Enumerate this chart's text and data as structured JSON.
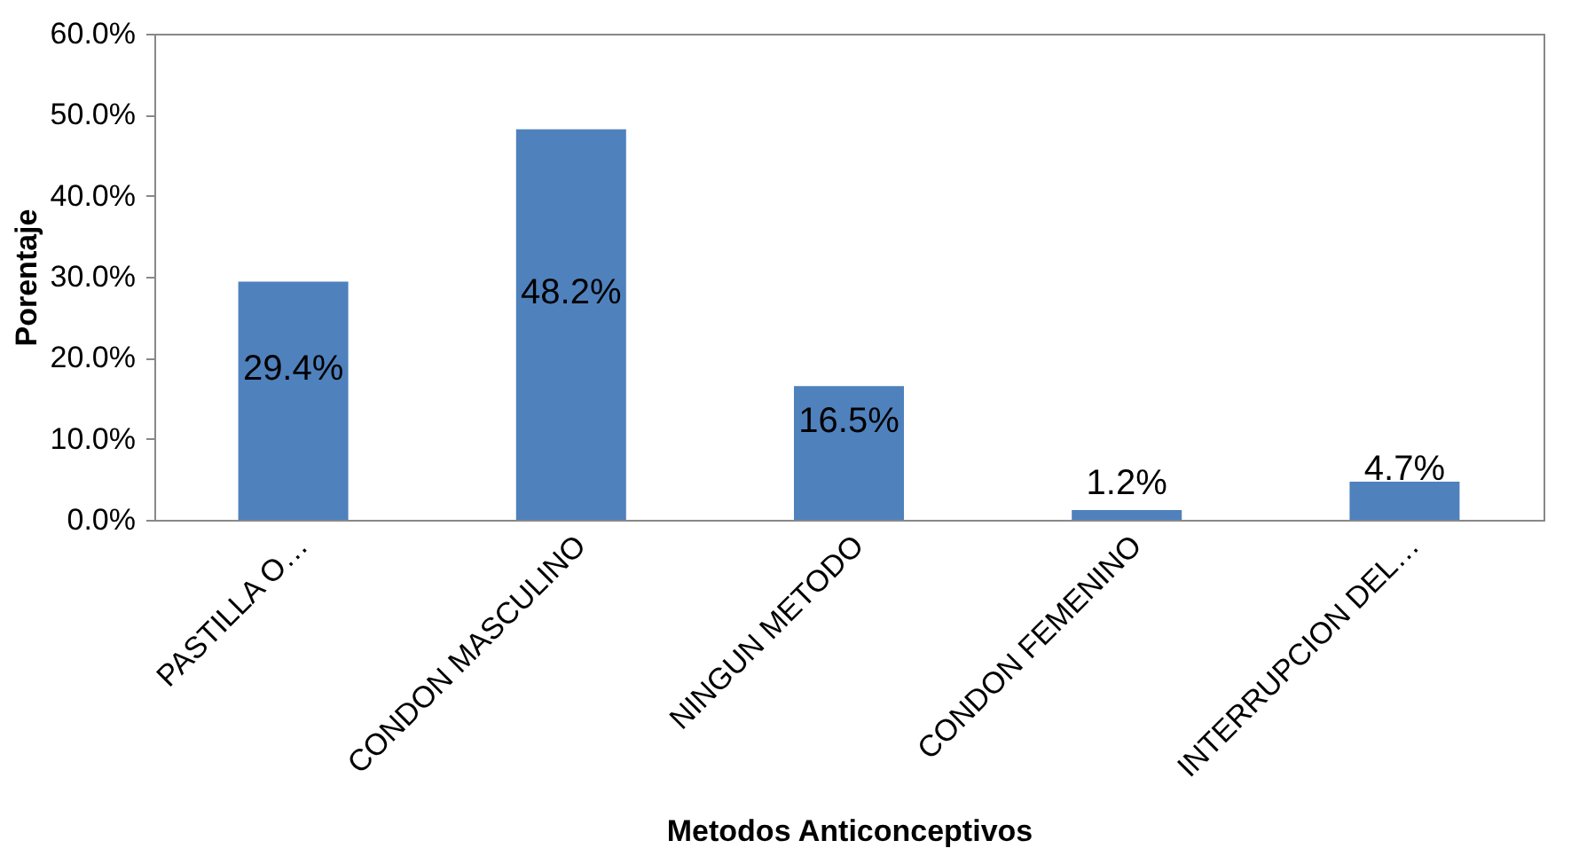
{
  "chart_data": {
    "type": "bar",
    "categories": [
      "PASTILLA O…",
      "CONDON MASCULINO",
      "NINGUN METODO",
      "CONDON FEMENINO",
      "INTERRUPCION DEL…"
    ],
    "values": [
      29.4,
      48.2,
      16.5,
      1.2,
      4.7
    ],
    "value_labels": [
      "29.4%",
      "48.2%",
      "16.5%",
      "1.2%",
      "4.7%"
    ],
    "color": "#4f81bd",
    "xlabel": "Metodos Anticonceptivos",
    "ylabel": "Porentaje",
    "ylim": [
      0,
      60
    ],
    "yticks": [
      {
        "value": 0,
        "label": "0.0%"
      },
      {
        "value": 10,
        "label": "10.0%"
      },
      {
        "value": 20,
        "label": "20.0%"
      },
      {
        "value": 30,
        "label": "30.0%"
      },
      {
        "value": 40,
        "label": "40.0%"
      },
      {
        "value": 50,
        "label": "50.0%"
      },
      {
        "value": 60,
        "label": "60.0%"
      }
    ],
    "grid": false
  }
}
